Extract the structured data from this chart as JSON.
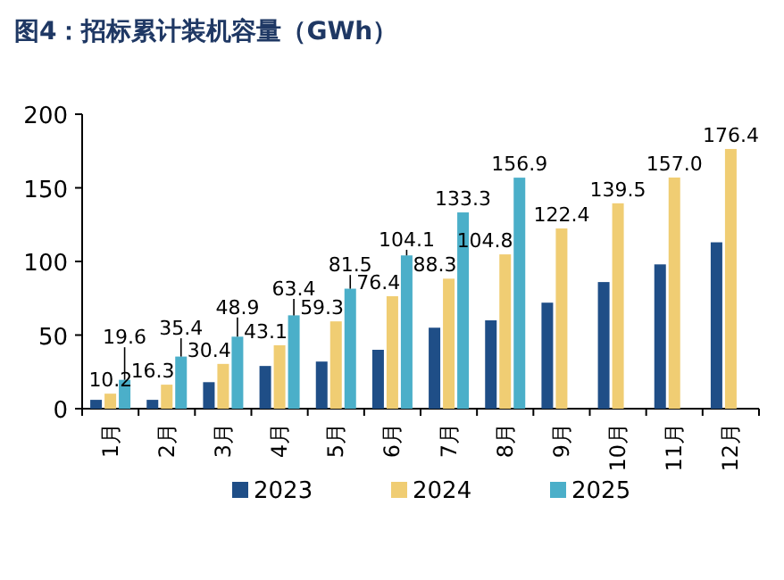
{
  "chart_data": {
    "type": "bar",
    "title": "图4：招标累计装机容量（GWh）",
    "categories": [
      "1月",
      "2月",
      "3月",
      "4月",
      "5月",
      "6月",
      "7月",
      "8月",
      "9月",
      "10月",
      "11月",
      "12月"
    ],
    "series": [
      {
        "name": "2023",
        "color": "#1f4e87",
        "values": [
          6,
          6,
          18,
          29,
          32,
          40,
          55,
          60,
          72,
          86,
          98,
          113
        ]
      },
      {
        "name": "2024",
        "color": "#f0cd73",
        "values": [
          10.2,
          16.3,
          30.4,
          43.1,
          59.3,
          76.4,
          88.3,
          104.8,
          122.4,
          139.5,
          157.0,
          176.4
        ],
        "value_labels": [
          "10.2",
          "16.3",
          "30.4",
          "43.1",
          "59.3",
          "76.4",
          "88.3",
          "104.8",
          "122.4",
          "139.5",
          "157.0",
          "176.4"
        ]
      },
      {
        "name": "2025",
        "color": "#4bafc9",
        "values": [
          19.6,
          35.4,
          48.9,
          63.4,
          81.5,
          104.1,
          133.3,
          156.9,
          null,
          null,
          null,
          null
        ],
        "value_labels": [
          "19.6",
          "35.4",
          "48.9",
          "63.4",
          "81.5",
          "104.1",
          "133.3",
          "156.9",
          null,
          null,
          null,
          null
        ]
      }
    ],
    "ylim": [
      0,
      200
    ],
    "yticks": [
      0,
      50,
      100,
      150,
      200
    ],
    "grid": false,
    "legend": "bottom"
  }
}
